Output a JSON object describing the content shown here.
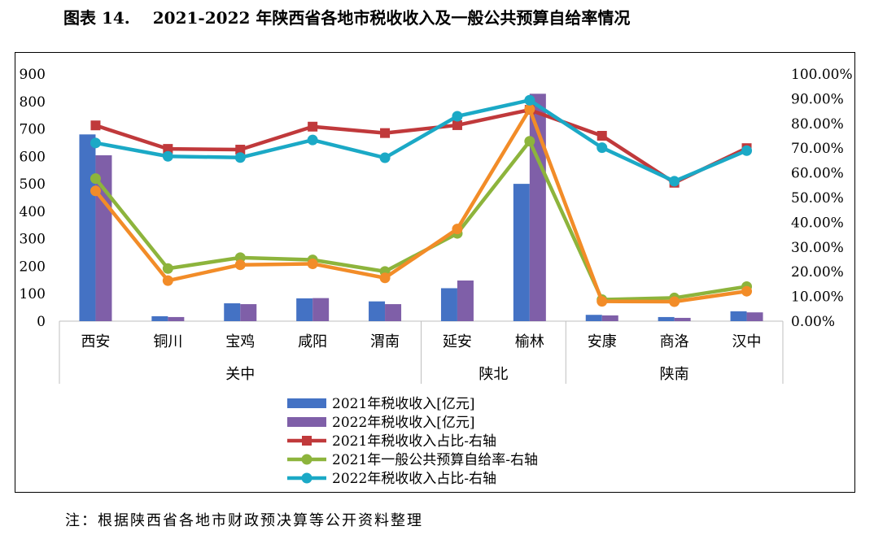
{
  "header": {
    "figure_label": "图表 14.",
    "title_text": "2021-2022 年陕西省各地市税收收入及一般公共预算自给率情况"
  },
  "footer": {
    "note": "注：根据陕西省各地市财政预决算等公开资料整理"
  },
  "chart_data": {
    "type": "bar",
    "title": "",
    "categories": [
      "西安",
      "铜川",
      "宝鸡",
      "咸阳",
      "渭南",
      "延安",
      "榆林",
      "安康",
      "商洛",
      "汉中"
    ],
    "groups": [
      {
        "label": "关中",
        "start": 0,
        "end": 4
      },
      {
        "label": "陕北",
        "start": 5,
        "end": 6
      },
      {
        "label": "陕南",
        "start": 7,
        "end": 9
      }
    ],
    "y_left": {
      "min": 0,
      "max": 900,
      "step": 100,
      "ticks": [
        "0",
        "100",
        "200",
        "300",
        "400",
        "500",
        "600",
        "700",
        "800",
        "900"
      ]
    },
    "y_right": {
      "min": 0,
      "max": 1,
      "step": 0.1,
      "ticks": [
        "0.00%",
        "10.00%",
        "20.00%",
        "30.00%",
        "40.00%",
        "50.00%",
        "60.00%",
        "70.00%",
        "80.00%",
        "90.00%",
        "100.00%"
      ]
    },
    "grid": false,
    "legend_position": "bottom",
    "bar_series": [
      {
        "name": "2021年税收收入[亿元]",
        "color": "#4472C4",
        "values": [
          680,
          18,
          65,
          83,
          72,
          120,
          500,
          23,
          15,
          36
        ]
      },
      {
        "name": "2022年税收收入[亿元]",
        "color": "#7F5FA8",
        "values": [
          604,
          15,
          62,
          84,
          62,
          148,
          828,
          21,
          12,
          32
        ]
      }
    ],
    "line_series": [
      {
        "name": "2021年税收收入占比-右轴",
        "color": "#C0393B",
        "marker": "square",
        "values": [
          0.792,
          0.697,
          0.694,
          0.787,
          0.761,
          0.793,
          0.855,
          0.75,
          0.56,
          0.7
        ]
      },
      {
        "name": "2021年一般公共预算自给率-右轴",
        "color": "#8DB43C",
        "marker": "circle",
        "values": [
          0.577,
          0.213,
          0.257,
          0.248,
          0.201,
          0.355,
          0.728,
          0.087,
          0.094,
          0.14
        ]
      },
      {
        "name": "2022年税收收入占比-右轴",
        "color": "#1BA9C6",
        "marker": "circle",
        "values": [
          0.721,
          0.667,
          0.662,
          0.733,
          0.661,
          0.829,
          0.894,
          0.702,
          0.566,
          0.69
        ]
      },
      {
        "name": "",
        "color": "#F28C28",
        "marker": "circle",
        "values": [
          0.527,
          0.164,
          0.228,
          0.232,
          0.175,
          0.373,
          0.858,
          0.08,
          0.079,
          0.121
        ]
      }
    ]
  }
}
